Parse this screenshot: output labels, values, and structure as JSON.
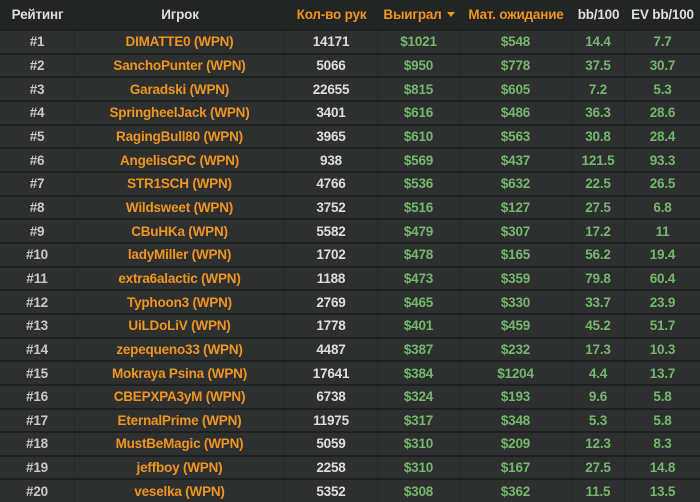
{
  "colors": {
    "accent_orange": "#ef9522",
    "value_green": "#74b76e",
    "text_white": "#dedede",
    "row_background": "#2e2f2f",
    "header_background": "#232424"
  },
  "table": {
    "sorted_column": "won",
    "sort_direction": "desc",
    "columns": [
      {
        "key": "rank",
        "label": "Рейтинг",
        "accent": false,
        "sorted": false
      },
      {
        "key": "player",
        "label": "Игрок",
        "accent": false,
        "sorted": false
      },
      {
        "key": "hands",
        "label": "Кол-во рук",
        "accent": true,
        "sorted": false
      },
      {
        "key": "won",
        "label": "Выиграл",
        "accent": true,
        "sorted": true
      },
      {
        "key": "ev",
        "label": "Мат. ожидание",
        "accent": true,
        "sorted": false
      },
      {
        "key": "bb100",
        "label": "bb/100",
        "accent": false,
        "sorted": false
      },
      {
        "key": "evbb100",
        "label": "EV bb/100",
        "accent": false,
        "sorted": false
      }
    ],
    "rows": [
      {
        "rank": "#1",
        "player": "DIMATTE0 (WPN)",
        "hands": "14171",
        "won": "$1021",
        "ev": "$548",
        "bb100": "14.4",
        "evbb100": "7.7"
      },
      {
        "rank": "#2",
        "player": "SanchoPunter (WPN)",
        "hands": "5066",
        "won": "$950",
        "ev": "$778",
        "bb100": "37.5",
        "evbb100": "30.7"
      },
      {
        "rank": "#3",
        "player": "Garadski (WPN)",
        "hands": "22655",
        "won": "$815",
        "ev": "$605",
        "bb100": "7.2",
        "evbb100": "5.3"
      },
      {
        "rank": "#4",
        "player": "SpringheelJack (WPN)",
        "hands": "3401",
        "won": "$616",
        "ev": "$486",
        "bb100": "36.3",
        "evbb100": "28.6"
      },
      {
        "rank": "#5",
        "player": "RagingBull80 (WPN)",
        "hands": "3965",
        "won": "$610",
        "ev": "$563",
        "bb100": "30.8",
        "evbb100": "28.4"
      },
      {
        "rank": "#6",
        "player": "AngelisGPC (WPN)",
        "hands": "938",
        "won": "$569",
        "ev": "$437",
        "bb100": "121.5",
        "evbb100": "93.3"
      },
      {
        "rank": "#7",
        "player": "STR1SCH (WPN)",
        "hands": "4766",
        "won": "$536",
        "ev": "$632",
        "bb100": "22.5",
        "evbb100": "26.5"
      },
      {
        "rank": "#8",
        "player": "Wildsweet (WPN)",
        "hands": "3752",
        "won": "$516",
        "ev": "$127",
        "bb100": "27.5",
        "evbb100": "6.8"
      },
      {
        "rank": "#9",
        "player": "CBuHKa (WPN)",
        "hands": "5582",
        "won": "$479",
        "ev": "$307",
        "bb100": "17.2",
        "evbb100": "11"
      },
      {
        "rank": "#10",
        "player": "ladyMiller (WPN)",
        "hands": "1702",
        "won": "$478",
        "ev": "$165",
        "bb100": "56.2",
        "evbb100": "19.4"
      },
      {
        "rank": "#11",
        "player": "extra6alactic (WPN)",
        "hands": "1188",
        "won": "$473",
        "ev": "$359",
        "bb100": "79.8",
        "evbb100": "60.4"
      },
      {
        "rank": "#12",
        "player": "Typhoon3 (WPN)",
        "hands": "2769",
        "won": "$465",
        "ev": "$330",
        "bb100": "33.7",
        "evbb100": "23.9"
      },
      {
        "rank": "#13",
        "player": "UiLDoLiV (WPN)",
        "hands": "1778",
        "won": "$401",
        "ev": "$459",
        "bb100": "45.2",
        "evbb100": "51.7"
      },
      {
        "rank": "#14",
        "player": "zepequeno33 (WPN)",
        "hands": "4487",
        "won": "$387",
        "ev": "$232",
        "bb100": "17.3",
        "evbb100": "10.3"
      },
      {
        "rank": "#15",
        "player": "Mokraya Psina (WPN)",
        "hands": "17641",
        "won": "$384",
        "ev": "$1204",
        "bb100": "4.4",
        "evbb100": "13.7"
      },
      {
        "rank": "#16",
        "player": "CBEPXPA3yM (WPN)",
        "hands": "6738",
        "won": "$324",
        "ev": "$193",
        "bb100": "9.6",
        "evbb100": "5.8"
      },
      {
        "rank": "#17",
        "player": "EternalPrime (WPN)",
        "hands": "11975",
        "won": "$317",
        "ev": "$348",
        "bb100": "5.3",
        "evbb100": "5.8"
      },
      {
        "rank": "#18",
        "player": "MustBeMagic (WPN)",
        "hands": "5059",
        "won": "$310",
        "ev": "$209",
        "bb100": "12.3",
        "evbb100": "8.3"
      },
      {
        "rank": "#19",
        "player": "jeffboy (WPN)",
        "hands": "2258",
        "won": "$310",
        "ev": "$167",
        "bb100": "27.5",
        "evbb100": "14.8"
      },
      {
        "rank": "#20",
        "player": "veselka (WPN)",
        "hands": "5352",
        "won": "$308",
        "ev": "$362",
        "bb100": "11.5",
        "evbb100": "13.5"
      }
    ]
  }
}
